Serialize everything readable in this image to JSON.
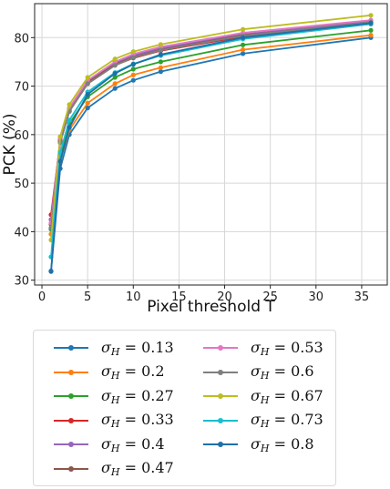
{
  "chart_data": {
    "type": "line",
    "xlabel": "Pixel threshold T",
    "ylabel": "PCK (%)",
    "xlim": [
      -0.8,
      37.8
    ],
    "ylim": [
      29,
      87
    ],
    "xticks": [
      0,
      5,
      10,
      15,
      20,
      25,
      30,
      35
    ],
    "yticks": [
      30,
      40,
      50,
      60,
      70,
      80
    ],
    "grid": true,
    "legend_placement": "below",
    "x": [
      1,
      2,
      3,
      5,
      8,
      10,
      13,
      22,
      36
    ],
    "series": [
      {
        "name": "σ_H = 0.13",
        "label_prefix": "σ",
        "label_sub": "H",
        "label_value": "= 0.13",
        "color": "#1f77b4",
        "values": [
          31.8,
          53.0,
          60.0,
          65.5,
          69.5,
          71.2,
          73.0,
          76.7,
          80.0
        ]
      },
      {
        "name": "σ_H = 0.2",
        "label_prefix": "σ",
        "label_sub": "H",
        "label_value": "= 0.2",
        "color": "#ff7f0e",
        "values": [
          39.5,
          54.5,
          61.0,
          66.5,
          70.5,
          72.3,
          73.8,
          77.5,
          80.5
        ]
      },
      {
        "name": "σ_H = 0.27",
        "label_prefix": "σ",
        "label_sub": "H",
        "label_value": "= 0.27",
        "color": "#2ca02c",
        "values": [
          40.5,
          55.5,
          62.3,
          67.8,
          71.8,
          73.5,
          75.0,
          78.5,
          81.5
        ]
      },
      {
        "name": "σ_H = 0.33",
        "label_prefix": "σ",
        "label_sub": "H",
        "label_value": "= 0.33",
        "color": "#d62728",
        "values": [
          43.5,
          58.5,
          64.8,
          70.5,
          74.3,
          75.8,
          77.3,
          80.2,
          82.8
        ]
      },
      {
        "name": "σ_H = 0.4",
        "label_prefix": "σ",
        "label_sub": "H",
        "label_value": "= 0.4",
        "color": "#9467bd",
        "values": [
          42.5,
          59.0,
          65.3,
          71.0,
          74.8,
          76.3,
          77.8,
          80.7,
          83.3
        ]
      },
      {
        "name": "σ_H = 0.47",
        "label_prefix": "σ",
        "label_sub": "H",
        "label_value": "= 0.47",
        "color": "#8c564b",
        "values": [
          41.5,
          58.8,
          65.0,
          70.8,
          74.5,
          76.0,
          77.5,
          80.5,
          83.0
        ]
      },
      {
        "name": "σ_H = 0.53",
        "label_prefix": "σ",
        "label_sub": "H",
        "label_value": "= 0.53",
        "color": "#e377c2",
        "values": [
          41.8,
          59.2,
          65.5,
          71.2,
          75.0,
          76.6,
          78.1,
          81.0,
          83.6
        ]
      },
      {
        "name": "σ_H = 0.6",
        "label_prefix": "σ",
        "label_sub": "H",
        "label_value": "= 0.6",
        "color": "#7f7f7f",
        "values": [
          40.8,
          58.3,
          64.8,
          70.5,
          74.3,
          75.9,
          77.4,
          80.4,
          83.2
        ]
      },
      {
        "name": "σ_H = 0.67",
        "label_prefix": "σ",
        "label_sub": "H",
        "label_value": "= 0.67",
        "color": "#bcbd22",
        "values": [
          38.3,
          59.6,
          66.2,
          71.8,
          75.6,
          77.1,
          78.6,
          81.7,
          84.6
        ]
      },
      {
        "name": "σ_H = 0.73",
        "label_prefix": "σ",
        "label_sub": "H",
        "label_value": "= 0.73",
        "color": "#17becf",
        "values": [
          34.8,
          56.3,
          63.0,
          68.8,
          72.8,
          74.6,
          76.3,
          79.7,
          82.8
        ]
      },
      {
        "name": "σ_H = 0.8",
        "label_prefix": "σ",
        "label_sub": "H",
        "label_value": "= 0.8",
        "color": "#1f6fa8",
        "values": [
          31.9,
          54.5,
          61.5,
          68.3,
          72.6,
          74.5,
          76.5,
          80.0,
          83.0
        ]
      }
    ]
  }
}
